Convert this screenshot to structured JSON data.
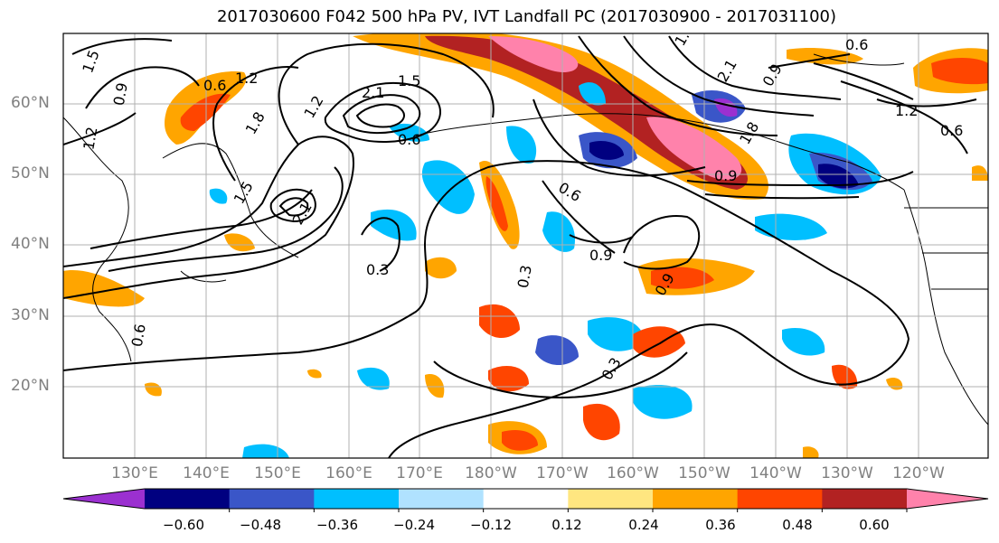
{
  "title": "2017030600 F042 500 hPa PV, IVT Landfall PC (2017030900 - 2017031100)",
  "lat_labels": [
    "60°N",
    "50°N",
    "40°N",
    "30°N",
    "20°N"
  ],
  "lon_labels": [
    "130°E",
    "140°E",
    "150°E",
    "160°E",
    "170°E",
    "180°W",
    "170°W",
    "160°W",
    "150°W",
    "140°W",
    "130°W",
    "120°W"
  ],
  "contour_labels": [
    "0.3",
    "0.6",
    "0.9",
    "1.2",
    "1.5",
    "1.8",
    "2.1"
  ],
  "colorbar": {
    "tick_labels": [
      "−0.60",
      "−0.48",
      "−0.36",
      "−0.24",
      "−0.12",
      "0.12",
      "0.24",
      "0.36",
      "0.48",
      "0.60"
    ],
    "colors": [
      "#9b30d0",
      "#000080",
      "#3a56c8",
      "#00bfff",
      "#b0e2ff",
      "#ffffff",
      "#ffe680",
      "#ffa500",
      "#ff4500",
      "#b22222",
      "#ff82ab"
    ]
  },
  "chart_data": {
    "type": "heatmap",
    "title": "2017030600 F042 500 hPa PV, IVT Landfall PC (2017030900 - 2017031100)",
    "lat_range": [
      10,
      70
    ],
    "lon_range": [
      120,
      250
    ],
    "contour_levels": [
      0.3,
      0.6,
      0.9,
      1.2,
      1.5,
      1.8,
      2.1
    ],
    "fill_levels": [
      -0.6,
      -0.48,
      -0.36,
      -0.24,
      -0.12,
      0.12,
      0.24,
      0.36,
      0.48,
      0.6
    ],
    "grid": true,
    "colorbar_placement": "bottom"
  }
}
